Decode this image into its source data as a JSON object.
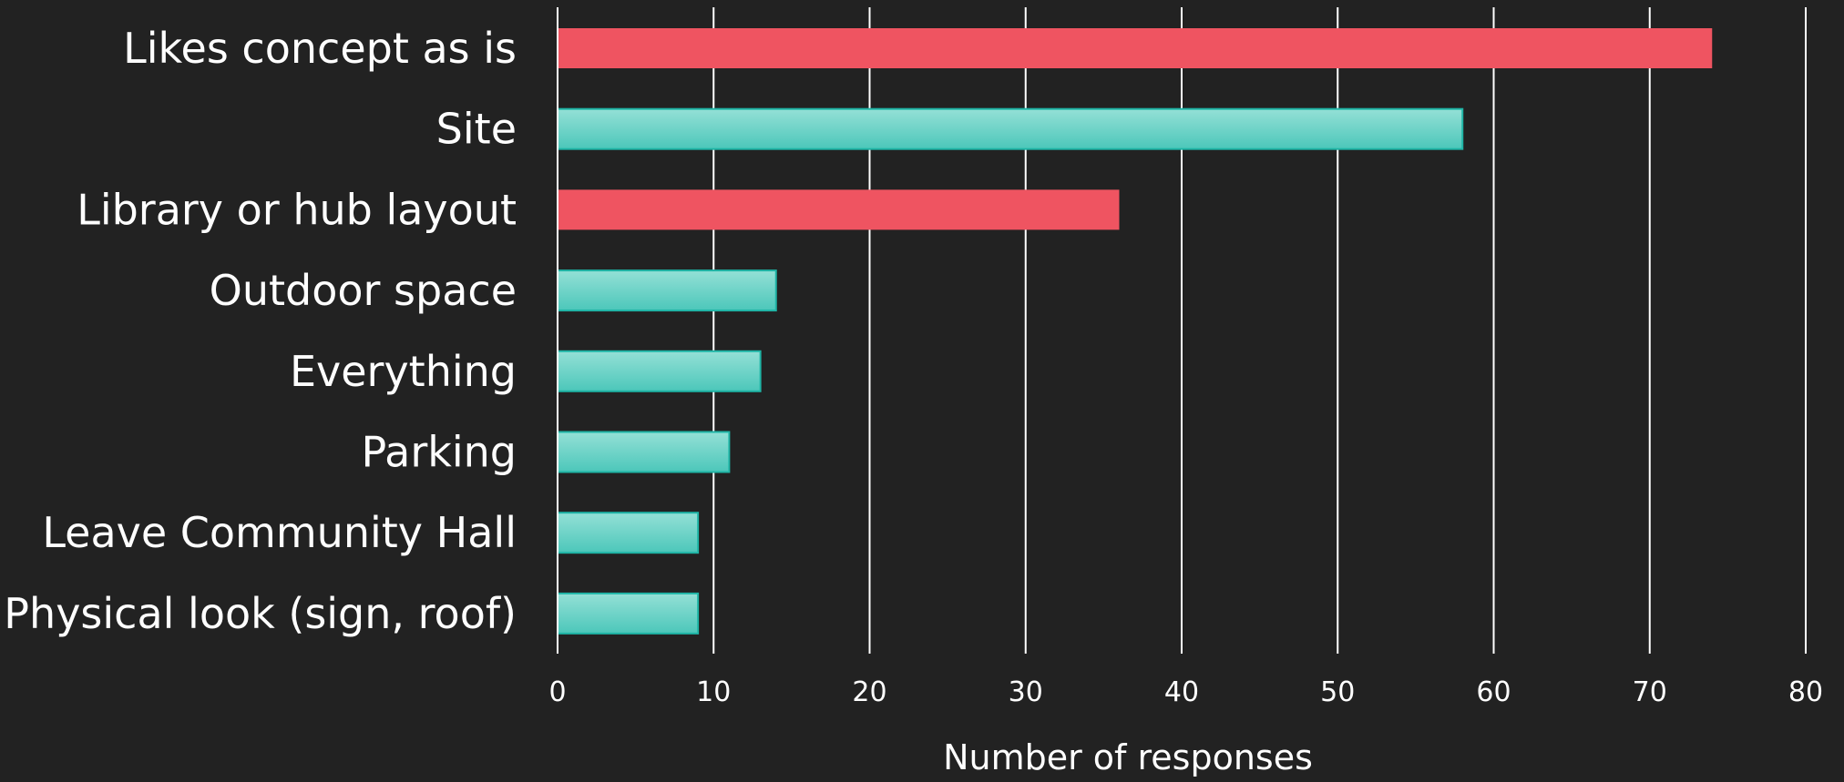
{
  "chart_data": {
    "type": "bar",
    "orientation": "horizontal",
    "title": "",
    "xlabel": "Number of responses",
    "ylabel": "",
    "xlim": [
      0,
      80
    ],
    "xticks": [
      0,
      10,
      20,
      30,
      40,
      50,
      60,
      70,
      80
    ],
    "grid": true,
    "categories": [
      "Likes concept as is",
      "Site",
      "Library or hub layout",
      "Outdoor space",
      "Everything",
      "Parking",
      "Leave Community Hall",
      "Physical look (sign, roof)"
    ],
    "values": [
      74,
      58,
      36,
      14,
      13,
      11,
      9,
      9
    ],
    "bar_styles": [
      "red",
      "teal",
      "red",
      "teal",
      "teal",
      "teal",
      "teal",
      "teal"
    ],
    "colors": {
      "background": "#222222",
      "red": "#EF5461",
      "teal_light": "#94E0D6",
      "teal_dark": "#4CC7BA",
      "teal_border": "#1FB5A6",
      "grid": "#ffffff",
      "text": "#ffffff"
    }
  }
}
